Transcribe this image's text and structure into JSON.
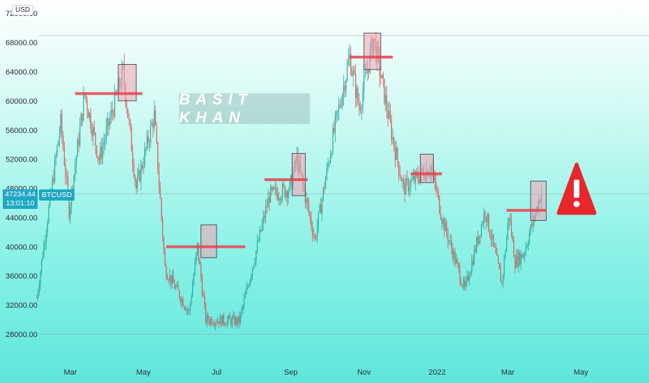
{
  "currency": "USD",
  "symbol": "BTCUSD",
  "last_price": "47234.44",
  "countdown": "13:01:10",
  "watermark": "BASIT KHAN",
  "top_axis_label_partial": "72000.00",
  "colors": {
    "up_candle": "#26a69a",
    "down_candle": "#e0524f",
    "resistance_line": "#e9434f",
    "box_fill": "#f4a3b0",
    "warning": "#e8272b",
    "price_tag": "#1fa8c4"
  },
  "icons": [
    "warning-icon"
  ],
  "chart_data": {
    "type": "candlestick",
    "title": "",
    "xlabel": "",
    "ylabel": "",
    "ylim": [
      24000,
      72000
    ],
    "y_ticks": [
      "28000.00",
      "32000.00",
      "36000.00",
      "40000.00",
      "44000.00",
      "48000.00",
      "52000.00",
      "56000.00",
      "60000.00",
      "64000.00",
      "68000.00"
    ],
    "x_ticks": [
      "Mar",
      "May",
      "Jul",
      "Sep",
      "Nov",
      "2022",
      "Mar",
      "May"
    ],
    "grid": false,
    "price_path_approx": [
      [
        "2021-02-01",
        33000
      ],
      [
        "2021-02-10",
        44000
      ],
      [
        "2021-02-21",
        57000
      ],
      [
        "2021-02-28",
        45000
      ],
      [
        "2021-03-13",
        61000
      ],
      [
        "2021-03-25",
        52000
      ],
      [
        "2021-04-14",
        64000
      ],
      [
        "2021-04-25",
        48000
      ],
      [
        "2021-05-10",
        58000
      ],
      [
        "2021-05-19",
        37000
      ],
      [
        "2021-06-08",
        31000
      ],
      [
        "2021-06-15",
        40000
      ],
      [
        "2021-06-22",
        30000
      ],
      [
        "2021-07-20",
        29800
      ],
      [
        "2021-08-14",
        47000
      ],
      [
        "2021-08-31",
        48000
      ],
      [
        "2021-09-06",
        52000
      ],
      [
        "2021-09-21",
        41000
      ],
      [
        "2021-10-06",
        55000
      ],
      [
        "2021-10-20",
        66000
      ],
      [
        "2021-10-28",
        59000
      ],
      [
        "2021-11-09",
        68500
      ],
      [
        "2021-11-26",
        54000
      ],
      [
        "2021-12-04",
        48000
      ],
      [
        "2021-12-27",
        51000
      ],
      [
        "2022-01-05",
        44000
      ],
      [
        "2022-01-24",
        34000
      ],
      [
        "2022-02-10",
        45000
      ],
      [
        "2022-02-24",
        35000
      ],
      [
        "2022-03-02",
        44500
      ],
      [
        "2022-03-07",
        38000
      ],
      [
        "2022-03-14",
        39000
      ],
      [
        "2022-03-29",
        47500
      ]
    ],
    "resistance_levels": [
      {
        "start": "2021-03-05",
        "end": "2021-04-30",
        "price": 61000
      },
      {
        "start": "2021-05-20",
        "end": "2021-07-25",
        "price": 40000
      },
      {
        "start": "2021-08-10",
        "end": "2021-09-15",
        "price": 49200
      },
      {
        "start": "2021-10-20",
        "end": "2021-11-25",
        "price": 66000
      },
      {
        "start": "2021-12-10",
        "end": "2022-01-05",
        "price": 50000
      },
      {
        "start": "2022-02-28",
        "end": "2022-04-02",
        "price": 45000
      }
    ],
    "highlight_boxes": [
      {
        "start": "2021-04-10",
        "end": "2021-04-25",
        "low": 60000,
        "high": 65000
      },
      {
        "start": "2021-06-18",
        "end": "2021-07-01",
        "low": 38500,
        "high": 43000
      },
      {
        "start": "2021-09-02",
        "end": "2021-09-13",
        "low": 47000,
        "high": 52800
      },
      {
        "start": "2021-11-01",
        "end": "2021-11-15",
        "low": 64300,
        "high": 69300
      },
      {
        "start": "2021-12-18",
        "end": "2021-12-29",
        "low": 48800,
        "high": 52700
      },
      {
        "start": "2022-03-20",
        "end": "2022-04-02",
        "low": 43600,
        "high": 49000
      }
    ],
    "horizontal_lines": [
      68900,
      47234.44,
      28000
    ]
  }
}
